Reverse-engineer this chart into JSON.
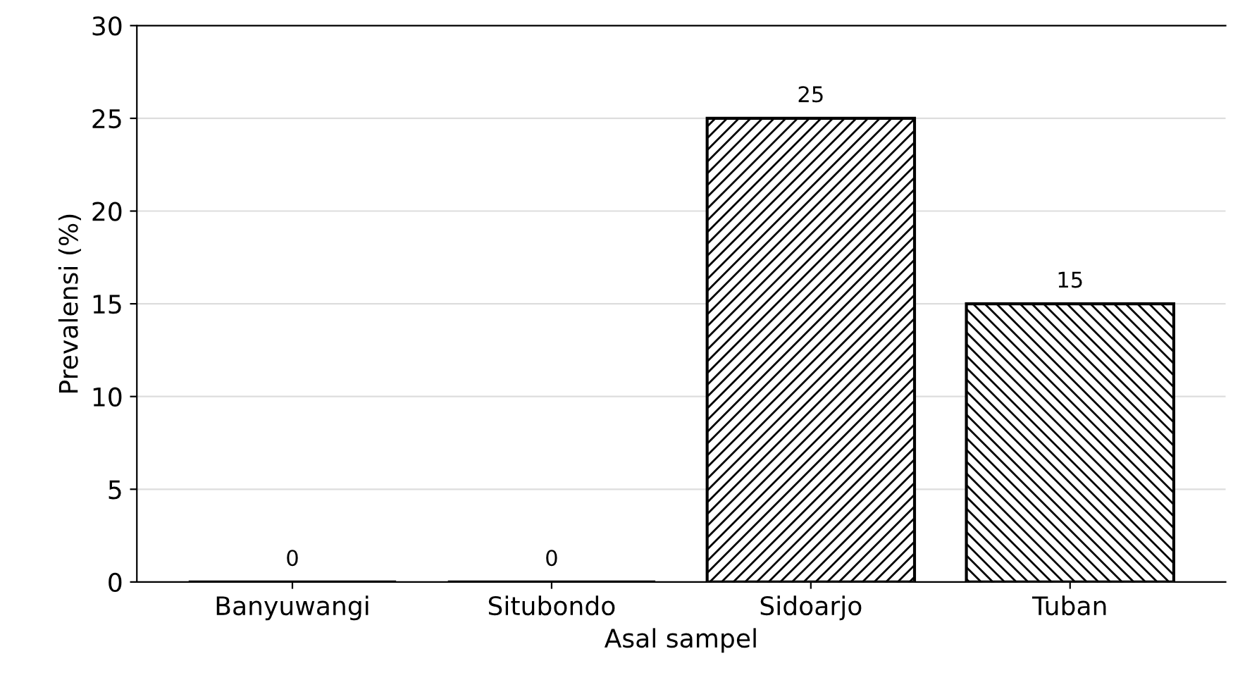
{
  "chart_data": {
    "type": "bar",
    "xlabel": "Asal sampel",
    "ylabel": "Prevalensi (%)",
    "categories": [
      "Banyuwangi",
      "Situbondo",
      "Sidoarjo",
      "Tuban"
    ],
    "values": [
      0,
      0,
      25,
      15
    ],
    "color": "#000000",
    "ylim": [
      0,
      30
    ],
    "yticks": [
      0,
      5,
      10,
      15,
      20,
      25,
      30
    ],
    "grid": "y",
    "data_labels": true
  }
}
